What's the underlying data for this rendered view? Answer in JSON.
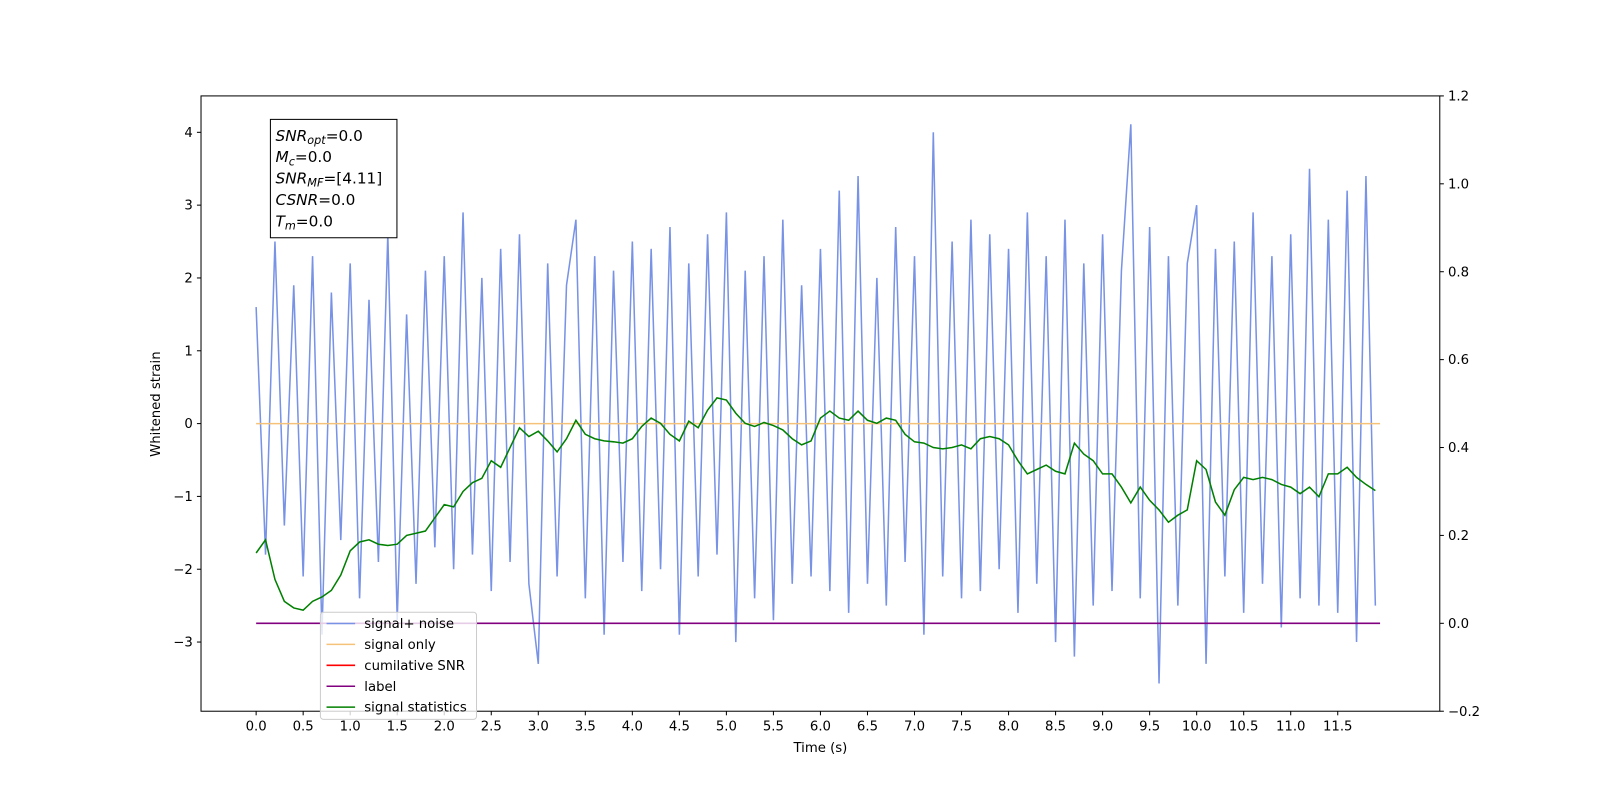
{
  "chart_data": {
    "type": "line",
    "xlabel": "Time (s)",
    "ylabel": "Whitened strain",
    "x": [
      0.0,
      0.1,
      0.2,
      0.3,
      0.4,
      0.5,
      0.6,
      0.7,
      0.8,
      0.9,
      1.0,
      1.1,
      1.2,
      1.3,
      1.4,
      1.5,
      1.6,
      1.7,
      1.8,
      1.9,
      2.0,
      2.1,
      2.2,
      2.3,
      2.4,
      2.5,
      2.6,
      2.7,
      2.8,
      2.9,
      3.0,
      3.1,
      3.2,
      3.3,
      3.4,
      3.5,
      3.6,
      3.7,
      3.8,
      3.9,
      4.0,
      4.1,
      4.2,
      4.3,
      4.4,
      4.5,
      4.6,
      4.7,
      4.8,
      4.9,
      5.0,
      5.1,
      5.2,
      5.3,
      5.4,
      5.5,
      5.6,
      5.7,
      5.8,
      5.9,
      6.0,
      6.1,
      6.2,
      6.3,
      6.4,
      6.5,
      6.6,
      6.7,
      6.8,
      6.9,
      7.0,
      7.1,
      7.2,
      7.3,
      7.4,
      7.5,
      7.6,
      7.7,
      7.8,
      7.9,
      8.0,
      8.1,
      8.2,
      8.3,
      8.4,
      8.5,
      8.6,
      8.7,
      8.8,
      8.9,
      9.0,
      9.1,
      9.2,
      9.3,
      9.4,
      9.5,
      9.6,
      9.7,
      9.8,
      9.9,
      10.0,
      10.1,
      10.2,
      10.3,
      10.4,
      10.5,
      10.6,
      10.7,
      10.8,
      10.9,
      11.0,
      11.1,
      11.2,
      11.3,
      11.4,
      11.5,
      11.6,
      11.7,
      11.8,
      11.9
    ],
    "series": [
      {
        "name": "signal+ noise",
        "color": "#7892e6",
        "values": [
          1.6,
          -1.8,
          2.5,
          -1.4,
          1.9,
          -2.1,
          2.3,
          -2.9,
          1.8,
          -1.6,
          2.2,
          -2.4,
          1.7,
          -1.9,
          2.6,
          -2.7,
          1.5,
          -2.2,
          2.1,
          -1.7,
          2.3,
          -2.0,
          2.9,
          -1.8,
          2.0,
          -2.3,
          2.4,
          -1.9,
          2.6,
          -2.2,
          -3.3,
          2.2,
          -2.1,
          1.9,
          2.8,
          -2.4,
          2.3,
          -2.9,
          2.1,
          -1.9,
          2.5,
          -2.3,
          2.4,
          -2.0,
          2.7,
          -2.9,
          2.2,
          -2.1,
          2.6,
          -1.8,
          2.9,
          -3.0,
          2.1,
          -2.4,
          2.3,
          -2.7,
          2.8,
          -2.2,
          1.9,
          -2.1,
          2.4,
          -2.3,
          3.2,
          -2.6,
          3.4,
          -2.2,
          2.0,
          -2.5,
          2.7,
          -1.9,
          2.3,
          -2.9,
          4.0,
          -2.1,
          2.5,
          -2.4,
          2.8,
          -2.3,
          2.6,
          -2.0,
          2.4,
          -2.6,
          2.9,
          -2.2,
          2.3,
          -3.0,
          2.8,
          -3.2,
          2.2,
          -2.5,
          2.6,
          -2.3,
          2.1,
          4.11,
          -2.4,
          2.7,
          -3.57,
          2.3,
          -2.5,
          2.2,
          3.0,
          -3.3,
          2.4,
          -2.1,
          2.5,
          -2.6,
          2.9,
          -2.2,
          2.3,
          -2.8,
          2.6,
          -2.4,
          3.5,
          -2.5,
          2.8,
          -2.6,
          3.2,
          -3.0,
          3.4,
          -2.5
        ]
      },
      {
        "name": "signal only",
        "color": "#f5c27a",
        "x": [
          0.0,
          11.95
        ],
        "values": [
          0,
          0
        ]
      },
      {
        "name": "cumilative SNR",
        "color": "#ff0000",
        "x": [],
        "values": []
      },
      {
        "name": "label",
        "color": "#800080",
        "axis": "y2",
        "x": [
          0.0,
          11.95
        ],
        "values": [
          0,
          0
        ]
      },
      {
        "name": "signal statistics",
        "color": "#008000",
        "axis": "y2",
        "values": [
          0.16,
          0.19,
          0.1,
          0.05,
          0.035,
          0.03,
          0.05,
          0.06,
          0.075,
          0.11,
          0.165,
          0.185,
          0.19,
          0.18,
          0.177,
          0.18,
          0.2,
          0.205,
          0.21,
          0.24,
          0.27,
          0.265,
          0.3,
          0.32,
          0.33,
          0.37,
          0.355,
          0.4,
          0.445,
          0.425,
          0.437,
          0.415,
          0.39,
          0.42,
          0.462,
          0.43,
          0.42,
          0.415,
          0.413,
          0.41,
          0.42,
          0.448,
          0.467,
          0.455,
          0.43,
          0.415,
          0.46,
          0.445,
          0.485,
          0.513,
          0.508,
          0.478,
          0.455,
          0.448,
          0.457,
          0.45,
          0.44,
          0.42,
          0.406,
          0.415,
          0.467,
          0.483,
          0.467,
          0.462,
          0.483,
          0.462,
          0.455,
          0.467,
          0.462,
          0.43,
          0.413,
          0.41,
          0.4,
          0.397,
          0.4,
          0.406,
          0.397,
          0.42,
          0.425,
          0.42,
          0.406,
          0.37,
          0.34,
          0.35,
          0.36,
          0.346,
          0.34,
          0.41,
          0.385,
          0.37,
          0.34,
          0.34,
          0.31,
          0.274,
          0.31,
          0.28,
          0.258,
          0.23,
          0.246,
          0.258,
          0.37,
          0.35,
          0.276,
          0.246,
          0.304,
          0.332,
          0.327,
          0.332,
          0.327,
          0.316,
          0.31,
          0.295,
          0.31,
          0.288,
          0.34,
          0.34,
          0.355,
          0.332,
          0.316,
          0.302
        ]
      }
    ],
    "xlim": [
      -0.586,
      12.585
    ],
    "xticks": [
      {
        "value": 0,
        "label": "0.0"
      },
      0.5,
      {
        "value": 1,
        "label": "1.0"
      },
      1.5,
      {
        "value": 2,
        "label": "2.0"
      },
      2.5,
      {
        "value": 3,
        "label": "3.0"
      },
      3.5,
      {
        "value": 4,
        "label": "4.0"
      },
      4.5,
      {
        "value": 5,
        "label": "5.0"
      },
      5.5,
      {
        "value": 6,
        "label": "6.0"
      },
      6.5,
      {
        "value": 7,
        "label": "7.0"
      },
      7.5,
      {
        "value": 8,
        "label": "8.0"
      },
      8.5,
      {
        "value": 9,
        "label": "9.0"
      },
      9.5,
      {
        "value": 10,
        "label": "10.0"
      },
      10.5,
      {
        "value": 11,
        "label": "11.0"
      },
      11.5
    ],
    "ylim": [
      -3.95,
      4.5
    ],
    "yticks": [
      {
        "value": -3,
        "label": "−3"
      },
      {
        "value": -2,
        "label": "−2"
      },
      {
        "value": -1,
        "label": "−1"
      },
      0,
      1,
      2,
      3,
      4
    ],
    "y2lim": [
      -0.2,
      1.2
    ],
    "y2ticks": [
      {
        "value": -0.2,
        "label": "−0.2"
      },
      {
        "value": 0,
        "label": "0.0"
      },
      0.2,
      0.4,
      0.6,
      0.8,
      {
        "value": 1,
        "label": "1.0"
      },
      1.2
    ],
    "legend": "lower left",
    "annotation": [
      {
        "text": "SNR",
        "sub": "opt",
        "value": "=0.0"
      },
      {
        "text": "M",
        "sub": "c",
        "value": "=0.0"
      },
      {
        "text": "SNR",
        "sub": "MF",
        "value": "=[4.11]"
      },
      {
        "text": "CSNR",
        "value": "=0.0"
      },
      {
        "text": "T",
        "sub": "m",
        "value": "=0.0"
      }
    ]
  }
}
